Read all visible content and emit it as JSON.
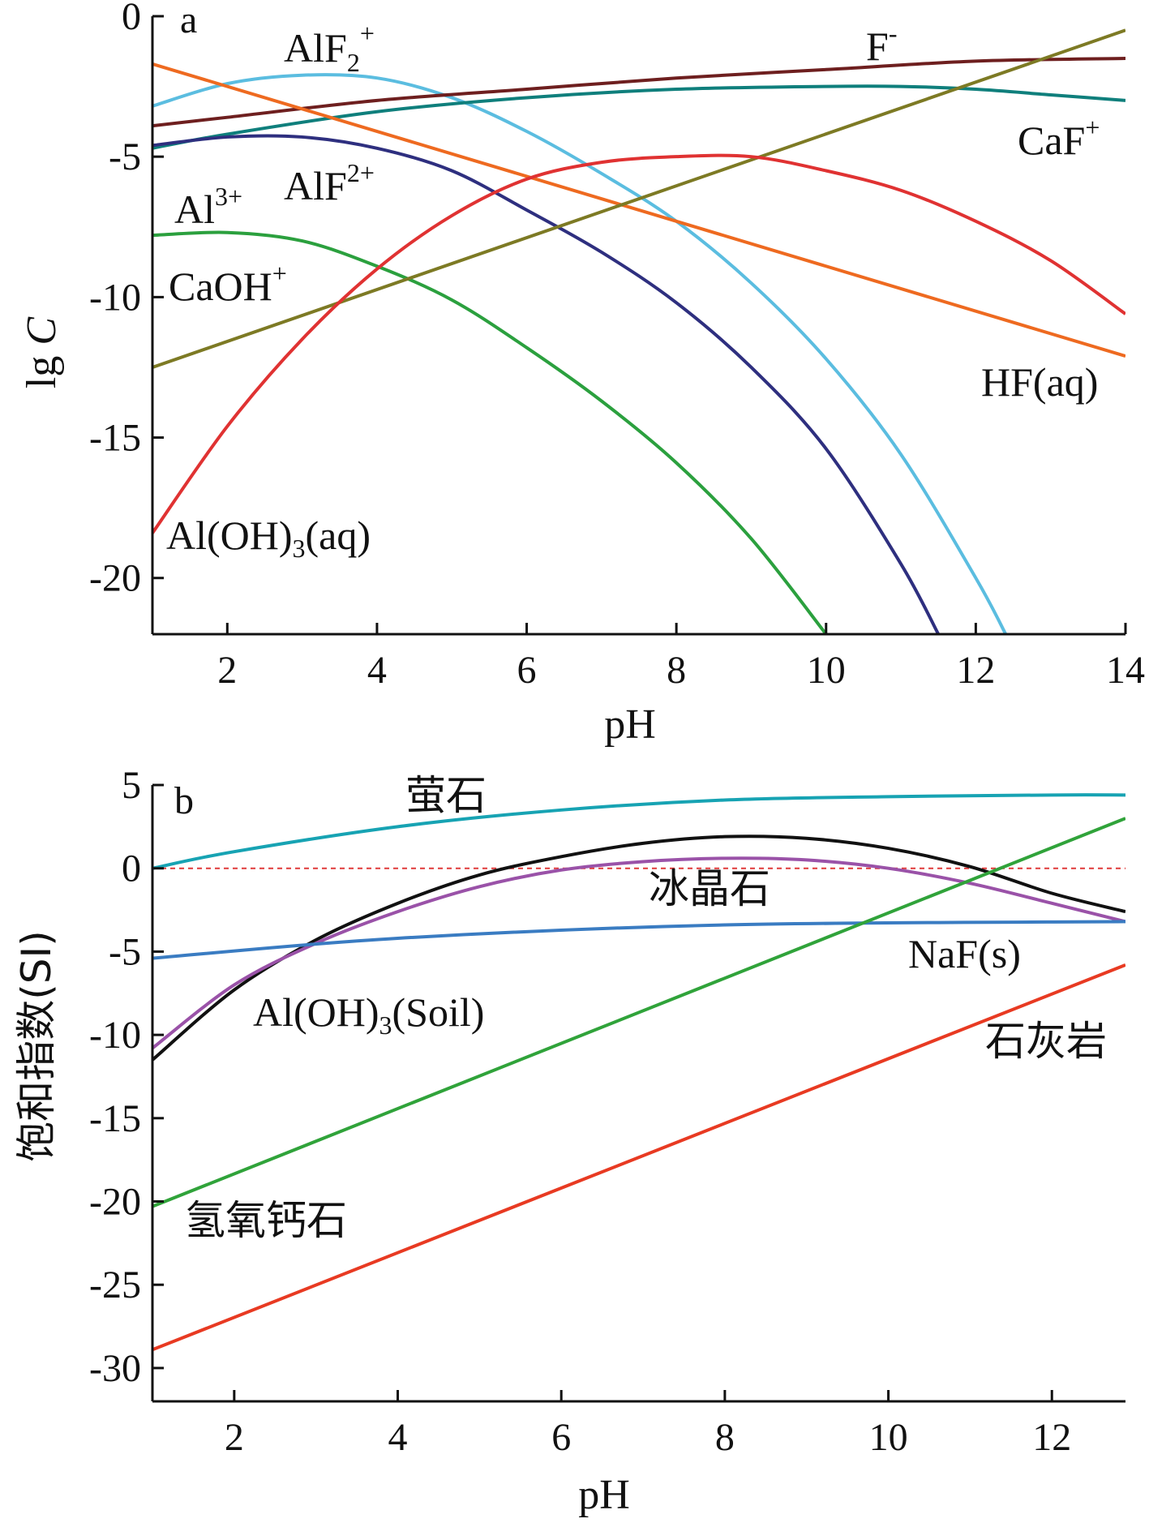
{
  "chart_data": [
    {
      "type": "line",
      "panel": "a",
      "xlabel": "pH",
      "ylabel_main": "lg",
      "ylabel_var": "C",
      "xlim": [
        1,
        14
      ],
      "ylim": [
        -22,
        0
      ],
      "xticks": [
        2,
        4,
        6,
        8,
        10,
        12,
        14
      ],
      "yticks": [
        0,
        -5,
        -10,
        -15,
        -20
      ],
      "series": [
        {
          "name": "AlF₂⁺",
          "color": "#5bbde0",
          "x": [
            1,
            2,
            3,
            4,
            5,
            6,
            7,
            8,
            9,
            10,
            11,
            12,
            12.4
          ],
          "y": [
            -3.2,
            -2.4,
            -2.1,
            -2.2,
            -2.9,
            -4.1,
            -5.6,
            -7.3,
            -9.5,
            -12.2,
            -15.6,
            -20.0,
            -22.0
          ]
        },
        {
          "name": "F⁻",
          "color": "#6e1f1f",
          "x": [
            1,
            2,
            4,
            6,
            8,
            10,
            12,
            14
          ],
          "y": [
            -3.9,
            -3.6,
            -3.0,
            -2.6,
            -2.2,
            -1.9,
            -1.6,
            -1.5
          ]
        },
        {
          "name": "CaF⁺",
          "color": "#0f7f7c",
          "x": [
            1,
            2,
            4,
            6,
            8,
            10,
            11,
            12,
            13,
            14
          ],
          "y": [
            -4.7,
            -4.2,
            -3.4,
            -2.9,
            -2.6,
            -2.5,
            -2.5,
            -2.6,
            -2.8,
            -3.0
          ]
        },
        {
          "name": "HF(aq)",
          "color": "#ee6a20",
          "x": [
            1,
            14
          ],
          "y": [
            -1.7,
            -12.1
          ]
        },
        {
          "name": "AlF²⁺",
          "color": "#2e2f7f",
          "x": [
            1,
            2,
            3,
            4,
            5,
            6,
            7,
            8,
            9,
            10,
            11,
            11.5
          ],
          "y": [
            -4.6,
            -4.3,
            -4.3,
            -4.7,
            -5.5,
            -6.9,
            -8.4,
            -10.2,
            -12.5,
            -15.4,
            -19.5,
            -22.0
          ]
        },
        {
          "name": "Al³⁺",
          "color": "#2ba03e",
          "x": [
            1,
            2,
            3,
            4,
            5,
            6,
            7,
            8,
            9,
            10
          ],
          "y": [
            -7.8,
            -7.7,
            -8.0,
            -8.9,
            -10.1,
            -11.8,
            -13.7,
            -15.9,
            -18.6,
            -22.0
          ]
        },
        {
          "name": "CaOH⁺",
          "color": "#7d7a24",
          "x": [
            1,
            14
          ],
          "y": [
            -12.5,
            -0.5
          ]
        },
        {
          "name": "Al(OH)₃(aq)",
          "color": "#e03232",
          "x": [
            1,
            2,
            3,
            4,
            5,
            6,
            7,
            8,
            9,
            10,
            11,
            12,
            13,
            14
          ],
          "y": [
            -18.4,
            -14.6,
            -11.5,
            -9.0,
            -7.1,
            -5.8,
            -5.2,
            -5.0,
            -5.0,
            -5.5,
            -6.2,
            -7.3,
            -8.7,
            -10.6
          ]
        }
      ],
      "annotations": {
        "panel_label": "a",
        "AlF2_main": "AlF",
        "AlF2_sub": "2",
        "AlF2_sup": "+",
        "F_main": "F",
        "F_sup": "-",
        "CaF_main": "CaF",
        "CaF_sup": "+",
        "AlF_main": "AlF",
        "AlF_sup": "2+",
        "Al_main": "Al",
        "Al_sup": "3+",
        "CaOH_main": "CaOH",
        "CaOH_sup": "+",
        "HF": "HF(aq)",
        "AlOH_main": "Al(OH)",
        "AlOH_sub": "3",
        "AlOH_tail": "(aq)"
      }
    },
    {
      "type": "line",
      "panel": "b",
      "xlabel": "pH",
      "ylabel": "饱和指数(SI)",
      "xlim": [
        1,
        12.9
      ],
      "ylim": [
        -32,
        5
      ],
      "xticks": [
        2,
        4,
        6,
        8,
        10,
        12
      ],
      "yticks": [
        5,
        0,
        -5,
        -10,
        -15,
        -20,
        -25,
        -30
      ],
      "reference_line": {
        "y": 0,
        "color": "#e03a3a"
      },
      "series": [
        {
          "name": "萤石",
          "color": "#17a3b3",
          "x": [
            1,
            2,
            4,
            6,
            8,
            10,
            12,
            12.9
          ],
          "y": [
            0.0,
            1.0,
            2.5,
            3.5,
            4.1,
            4.3,
            4.4,
            4.4
          ]
        },
        {
          "name": "Al(OH)₃(Soil)",
          "color": "#111111",
          "x": [
            1,
            2,
            3,
            4,
            5,
            6,
            7,
            8,
            9,
            10,
            11,
            12,
            12.9
          ],
          "y": [
            -11.5,
            -7.3,
            -4.3,
            -2.1,
            -0.4,
            0.7,
            1.5,
            1.9,
            1.8,
            1.2,
            0.1,
            -1.5,
            -2.6
          ]
        },
        {
          "name": "冰晶石",
          "color": "#9a52a8",
          "x": [
            1,
            2,
            3,
            4,
            5,
            6,
            7,
            8,
            9,
            10,
            11,
            12,
            12.9
          ],
          "y": [
            -10.8,
            -7.0,
            -4.5,
            -2.6,
            -1.1,
            -0.1,
            0.4,
            0.6,
            0.5,
            0.0,
            -0.9,
            -2.1,
            -3.2
          ]
        },
        {
          "name": "NaF(s)",
          "color": "#3a7cc2",
          "x": [
            1,
            4,
            8,
            12.9
          ],
          "y": [
            -5.4,
            -4.2,
            -3.4,
            -3.2
          ]
        },
        {
          "name": "氢氧钙石",
          "color": "#30a33a",
          "x": [
            1,
            12.9
          ],
          "y": [
            -20.3,
            3.0
          ]
        },
        {
          "name": "石灰岩",
          "color": "#e83a22",
          "x": [
            1,
            12.9
          ],
          "y": [
            -28.9,
            -5.8
          ]
        }
      ],
      "annotations": {
        "panel_label": "b",
        "fluorite": "萤石",
        "cryolite": "冰晶石",
        "naf": "NaF(s)",
        "limestone": "石灰岩",
        "portlandite": "氢氧钙石",
        "soil_main": "Al(OH)",
        "soil_sub": "3",
        "soil_tail": "(Soil)"
      }
    }
  ]
}
